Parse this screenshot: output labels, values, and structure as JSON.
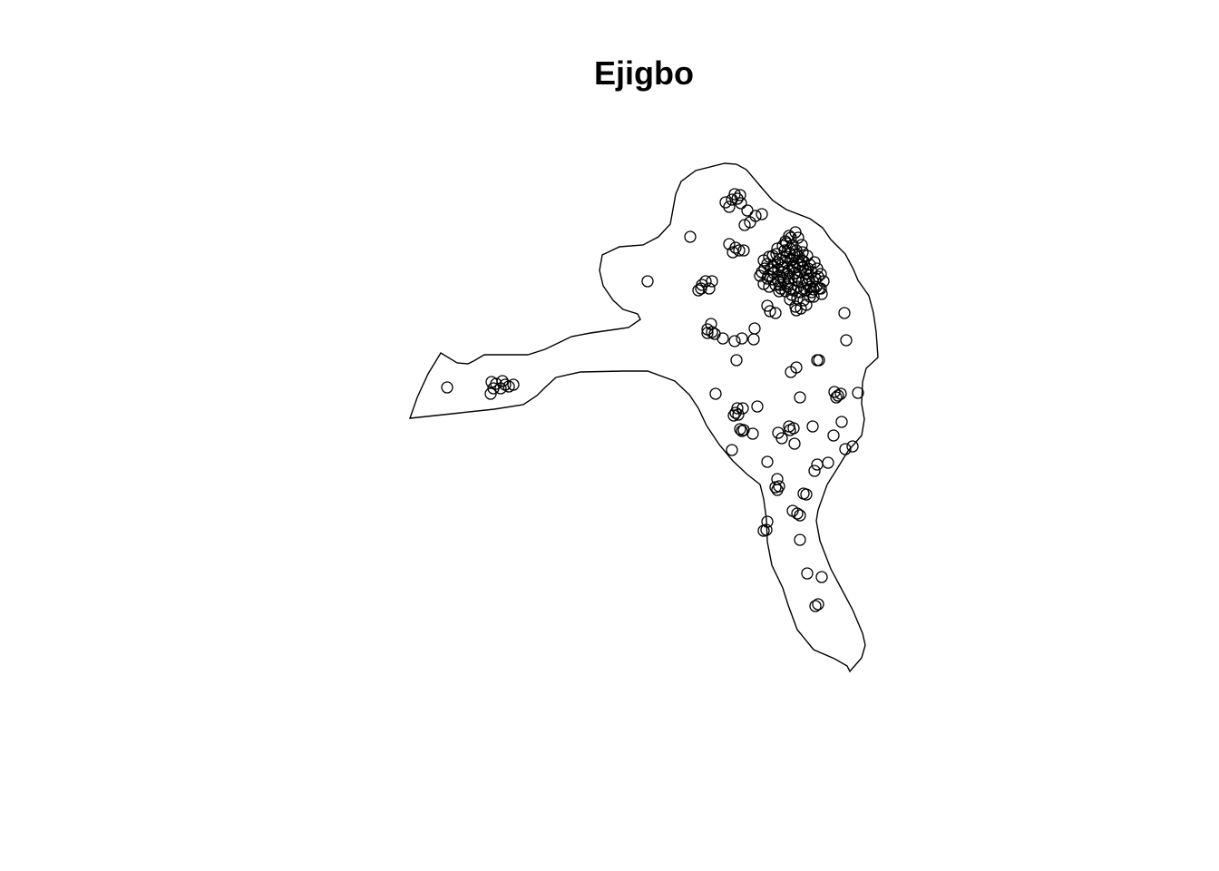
{
  "title": "Ejigbo",
  "map": {
    "type": "point-pattern",
    "symbol": "open-circle",
    "point_color": "#000000",
    "boundary_color": "#000000",
    "background": "#ffffff",
    "axes_shown": false
  }
}
